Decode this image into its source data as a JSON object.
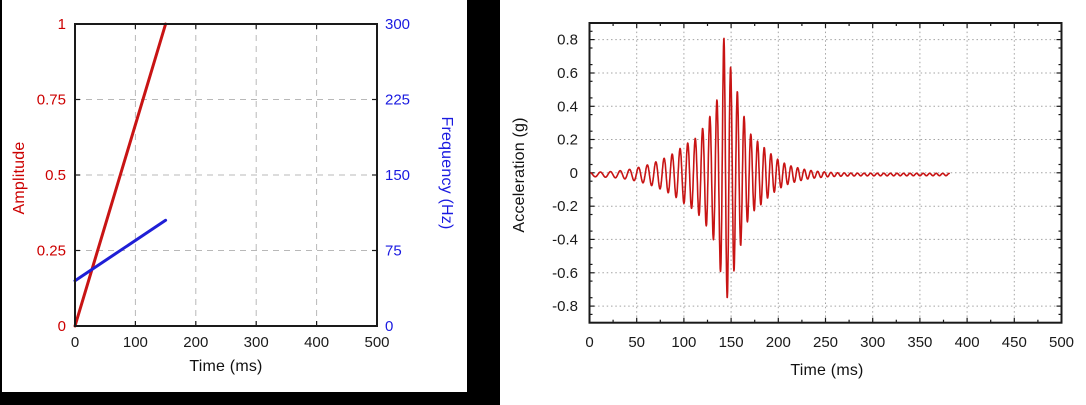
{
  "page": {
    "background_color": "#ffffff",
    "left_figure_frame_color": "#000000"
  },
  "chart_data": [
    {
      "id": "excitation-chart",
      "type": "line",
      "title": "",
      "xlabel": "Time (ms)",
      "x_range": [
        0,
        500
      ],
      "x_ticks": [
        0,
        100,
        200,
        300,
        400,
        500
      ],
      "x_tick_labels": [
        "0",
        "100",
        "200",
        "300",
        "400",
        "500"
      ],
      "grid": "dashed",
      "grid_color": "#b8b8b8",
      "frame_color": "#1a1a1a",
      "x_tick_label_color": "#1a1a1a",
      "left_axis": {
        "label": "Amplitude",
        "color": "#cc0000",
        "range": [
          0,
          1
        ],
        "ticks": [
          0,
          0.25,
          0.5,
          0.75,
          1
        ],
        "tick_labels": [
          "0",
          "0.25",
          "0.5",
          "0.75",
          "1"
        ]
      },
      "right_axis": {
        "label": "Frequency (Hz)",
        "color": "#1a1ae0",
        "range": [
          0,
          300
        ],
        "ticks": [
          0,
          75,
          150,
          225,
          300
        ],
        "tick_labels": [
          "0",
          "75",
          "150",
          "225",
          "300"
        ]
      },
      "series": [
        {
          "name": "amplitude-ramp",
          "axis": "left",
          "color": "#c81414",
          "width": 3,
          "points": [
            [
              0,
              0
            ],
            [
              150,
              1
            ]
          ]
        },
        {
          "name": "frequency-sweep",
          "axis": "right",
          "color": "#1f1fd6",
          "width": 3,
          "points": [
            [
              0,
              45
            ],
            [
              150,
              105
            ]
          ]
        }
      ]
    },
    {
      "id": "response-chart",
      "type": "line",
      "title": "",
      "xlabel": "Time (ms)",
      "ylabel": "Acceleration (g)",
      "x_range": [
        0,
        500
      ],
      "x_ticks": [
        0,
        50,
        100,
        150,
        200,
        250,
        300,
        350,
        400,
        450,
        500
      ],
      "x_tick_labels": [
        "0",
        "50",
        "100",
        "150",
        "200",
        "250",
        "300",
        "350",
        "400",
        "450",
        "500"
      ],
      "y_range": [
        -0.9,
        0.9
      ],
      "y_ticks": [
        -0.8,
        -0.6,
        -0.4,
        -0.2,
        0,
        0.2,
        0.4,
        0.6,
        0.8
      ],
      "y_tick_labels": [
        "-0.8",
        "-0.6",
        "-0.4",
        "-0.2",
        "0",
        "0.2",
        "0.4",
        "0.6",
        "0.8"
      ],
      "grid": "dotted",
      "grid_color": "#a3a3a3",
      "frame_color": "#1a1a1a",
      "x_tick_label_color": "#1a1a1a",
      "y_tick_label_color": "#1a1a1a",
      "series": [
        {
          "name": "acceleration-waveform",
          "color": "#c81414",
          "width": 1.6,
          "signal": {
            "kind": "swept-sine-burst",
            "t_start_ms": 0,
            "t_end_ms": 381,
            "sample_step_ms": 0.25,
            "baseline_g": -0.01,
            "peak_g": 0.82,
            "peak_time_ms": 142,
            "min_g": -0.75,
            "min_time_ms": 146,
            "phase_offset_cycles": 0.19,
            "freq_profile_hz": [
              [
                0,
                88
              ],
              [
                150,
                140
              ],
              [
                381,
                145
              ]
            ],
            "envelope_g": [
              [
                0,
                0.012
              ],
              [
                25,
                0.018
              ],
              [
                40,
                0.028
              ],
              [
                50,
                0.04
              ],
              [
                60,
                0.055
              ],
              [
                70,
                0.075
              ],
              [
                80,
                0.1
              ],
              [
                90,
                0.13
              ],
              [
                99,
                0.17
              ],
              [
                107,
                0.2
              ],
              [
                113,
                0.22
              ],
              [
                119,
                0.27
              ],
              [
                125,
                0.32
              ],
              [
                132,
                0.4
              ],
              [
                137,
                0.48
              ],
              [
                140,
                0.66
              ],
              [
                142.5,
                0.83
              ],
              [
                146,
                0.74
              ],
              [
                150,
                0.63
              ],
              [
                153,
                0.58
              ],
              [
                157,
                0.49
              ],
              [
                160,
                0.43
              ],
              [
                166,
                0.3
              ],
              [
                172,
                0.23
              ],
              [
                180,
                0.19
              ],
              [
                189,
                0.14
              ],
              [
                197,
                0.1
              ],
              [
                205,
                0.072
              ],
              [
                213,
                0.052
              ],
              [
                221,
                0.04
              ],
              [
                230,
                0.028
              ],
              [
                240,
                0.02
              ],
              [
                252,
                0.014
              ],
              [
                265,
                0.01
              ],
              [
                285,
                0.008
              ],
              [
                381,
                0.007
              ]
            ]
          }
        }
      ]
    }
  ]
}
